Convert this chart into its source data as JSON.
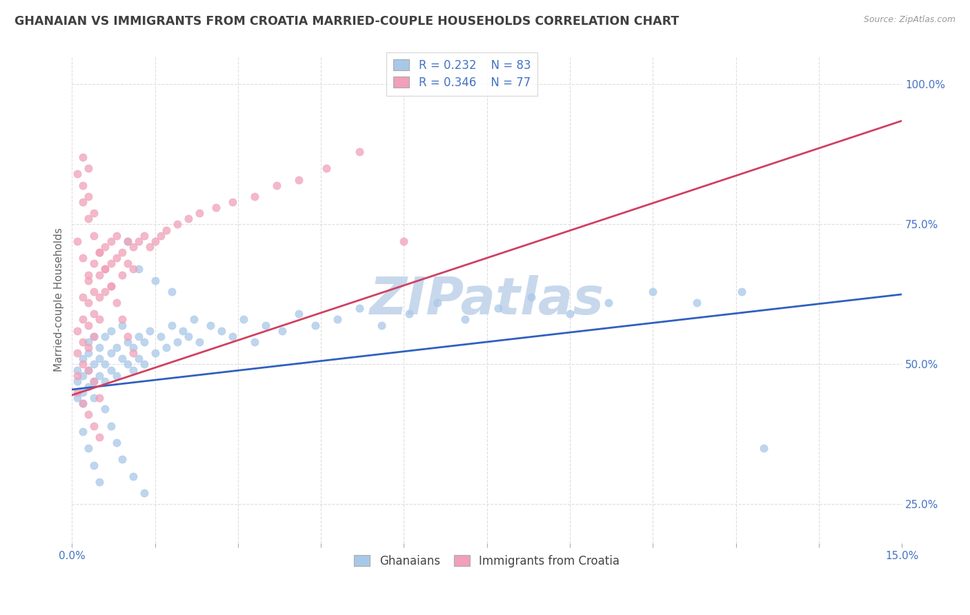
{
  "title": "GHANAIAN VS IMMIGRANTS FROM CROATIA MARRIED-COUPLE HOUSEHOLDS CORRELATION CHART",
  "source_text": "Source: ZipAtlas.com",
  "ylabel": "Married-couple Households",
  "xlim": [
    0.0,
    0.15
  ],
  "ylim": [
    0.18,
    1.05
  ],
  "yticks": [
    0.25,
    0.5,
    0.75,
    1.0
  ],
  "ytick_labels": [
    "25.0%",
    "50.0%",
    "75.0%",
    "100.0%"
  ],
  "legend_R_blue": "0.232",
  "legend_N_blue": "83",
  "legend_R_pink": "0.346",
  "legend_N_pink": "77",
  "blue_color": "#A8C8E8",
  "pink_color": "#F0A0B8",
  "blue_line_color": "#3060C0",
  "pink_line_color": "#D04060",
  "tick_color": "#4472C4",
  "watermark_color": "#C8D8EC",
  "background_color": "#FFFFFF",
  "title_color": "#404040",
  "grid_color": "#DDDDDD",
  "blue_line_y0": 0.455,
  "blue_line_y1": 0.625,
  "pink_line_y0": 0.445,
  "pink_line_y1": 0.935,
  "blue_x": [
    0.001,
    0.001,
    0.001,
    0.002,
    0.002,
    0.002,
    0.002,
    0.003,
    0.003,
    0.003,
    0.003,
    0.004,
    0.004,
    0.004,
    0.004,
    0.005,
    0.005,
    0.005,
    0.006,
    0.006,
    0.006,
    0.007,
    0.007,
    0.007,
    0.008,
    0.008,
    0.009,
    0.009,
    0.01,
    0.01,
    0.011,
    0.011,
    0.012,
    0.012,
    0.013,
    0.013,
    0.014,
    0.015,
    0.016,
    0.017,
    0.018,
    0.019,
    0.02,
    0.021,
    0.022,
    0.023,
    0.025,
    0.027,
    0.029,
    0.031,
    0.033,
    0.035,
    0.038,
    0.041,
    0.044,
    0.048,
    0.052,
    0.056,
    0.061,
    0.066,
    0.071,
    0.077,
    0.083,
    0.09,
    0.097,
    0.105,
    0.113,
    0.121,
    0.01,
    0.012,
    0.015,
    0.018,
    0.002,
    0.003,
    0.004,
    0.005,
    0.006,
    0.007,
    0.008,
    0.009,
    0.011,
    0.013,
    0.125
  ],
  "blue_y": [
    0.49,
    0.47,
    0.44,
    0.51,
    0.48,
    0.45,
    0.43,
    0.52,
    0.49,
    0.46,
    0.54,
    0.5,
    0.47,
    0.55,
    0.44,
    0.51,
    0.48,
    0.53,
    0.5,
    0.47,
    0.55,
    0.52,
    0.49,
    0.56,
    0.48,
    0.53,
    0.51,
    0.57,
    0.5,
    0.54,
    0.53,
    0.49,
    0.55,
    0.51,
    0.54,
    0.5,
    0.56,
    0.52,
    0.55,
    0.53,
    0.57,
    0.54,
    0.56,
    0.55,
    0.58,
    0.54,
    0.57,
    0.56,
    0.55,
    0.58,
    0.54,
    0.57,
    0.56,
    0.59,
    0.57,
    0.58,
    0.6,
    0.57,
    0.59,
    0.61,
    0.58,
    0.6,
    0.62,
    0.59,
    0.61,
    0.63,
    0.61,
    0.63,
    0.72,
    0.67,
    0.65,
    0.63,
    0.38,
    0.35,
    0.32,
    0.29,
    0.42,
    0.39,
    0.36,
    0.33,
    0.3,
    0.27,
    0.35
  ],
  "pink_x": [
    0.001,
    0.001,
    0.001,
    0.002,
    0.002,
    0.002,
    0.002,
    0.003,
    0.003,
    0.003,
    0.003,
    0.003,
    0.004,
    0.004,
    0.004,
    0.004,
    0.005,
    0.005,
    0.005,
    0.005,
    0.006,
    0.006,
    0.006,
    0.007,
    0.007,
    0.007,
    0.008,
    0.008,
    0.009,
    0.009,
    0.01,
    0.01,
    0.011,
    0.011,
    0.012,
    0.013,
    0.014,
    0.015,
    0.016,
    0.017,
    0.019,
    0.021,
    0.023,
    0.026,
    0.029,
    0.033,
    0.037,
    0.041,
    0.046,
    0.052,
    0.002,
    0.003,
    0.004,
    0.005,
    0.006,
    0.007,
    0.008,
    0.009,
    0.01,
    0.011,
    0.001,
    0.002,
    0.003,
    0.004,
    0.005,
    0.002,
    0.003,
    0.004,
    0.001,
    0.002,
    0.003,
    0.003,
    0.002,
    0.001,
    0.004,
    0.005,
    0.06
  ],
  "pink_y": [
    0.56,
    0.52,
    0.48,
    0.62,
    0.58,
    0.54,
    0.5,
    0.65,
    0.61,
    0.57,
    0.53,
    0.49,
    0.68,
    0.63,
    0.59,
    0.55,
    0.7,
    0.66,
    0.62,
    0.58,
    0.71,
    0.67,
    0.63,
    0.72,
    0.68,
    0.64,
    0.73,
    0.69,
    0.7,
    0.66,
    0.72,
    0.68,
    0.71,
    0.67,
    0.72,
    0.73,
    0.71,
    0.72,
    0.73,
    0.74,
    0.75,
    0.76,
    0.77,
    0.78,
    0.79,
    0.8,
    0.82,
    0.83,
    0.85,
    0.88,
    0.79,
    0.76,
    0.73,
    0.7,
    0.67,
    0.64,
    0.61,
    0.58,
    0.55,
    0.52,
    0.45,
    0.43,
    0.41,
    0.39,
    0.37,
    0.82,
    0.8,
    0.77,
    0.72,
    0.69,
    0.66,
    0.85,
    0.87,
    0.84,
    0.47,
    0.44,
    0.72
  ]
}
